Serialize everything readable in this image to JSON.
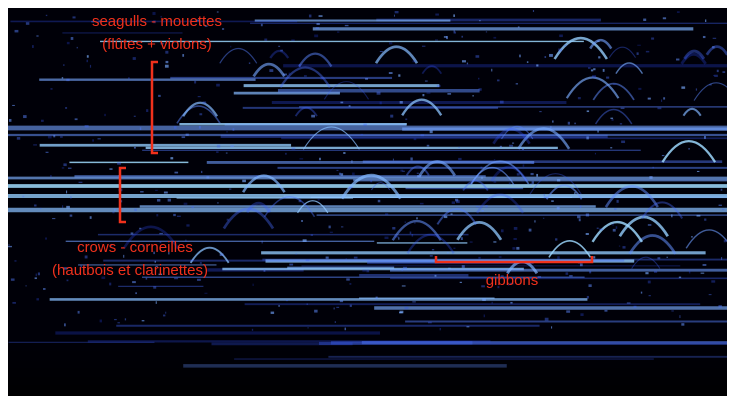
{
  "annotations": [
    {
      "label": "seagulls - mouettes",
      "sublabel": "(flûtes + violons)"
    },
    {
      "label": "crows - corneilles",
      "sublabel": "(hautbois et clarinettes)"
    },
    {
      "label": "gibbons"
    }
  ]
}
